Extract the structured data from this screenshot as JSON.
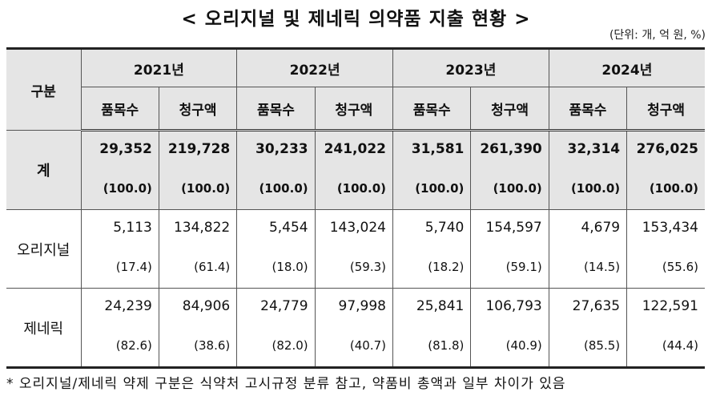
{
  "title": "< 오리지널 및 제네릭 의약품 지출 현황 >",
  "unit": "(단위: 개, 억 원, %)",
  "table": {
    "corner": "구분",
    "years": [
      "2021년",
      "2022년",
      "2023년",
      "2024년"
    ],
    "subheaders": [
      "품목수",
      "청구액"
    ],
    "rows": [
      {
        "label": "계",
        "values": [
          "29,352",
          "219,728",
          "30,233",
          "241,022",
          "31,581",
          "261,390",
          "32,314",
          "276,025"
        ],
        "shares": [
          "(100.0)",
          "(100.0)",
          "(100.0)",
          "(100.0)",
          "(100.0)",
          "(100.0)",
          "(100.0)",
          "(100.0)"
        ]
      },
      {
        "label": "오리지널",
        "values": [
          "5,113",
          "134,822",
          "5,454",
          "143,024",
          "5,740",
          "154,597",
          "4,679",
          "153,434"
        ],
        "shares": [
          "(17.4)",
          "(61.4)",
          "(18.0)",
          "(59.3)",
          "(18.2)",
          "(59.1)",
          "(14.5)",
          "(55.6)"
        ]
      },
      {
        "label": "제네릭",
        "values": [
          "24,239",
          "84,906",
          "24,779",
          "97,998",
          "25,841",
          "106,793",
          "27,635",
          "122,591"
        ],
        "shares": [
          "(82.6)",
          "(38.6)",
          "(82.0)",
          "(40.7)",
          "(81.8)",
          "(40.9)",
          "(85.5)",
          "(44.4)"
        ]
      }
    ]
  },
  "footnote": "* 오리지널/제네릭 약제 구분은 식약처 고시규정 분류 참고, 약품비 총액과 일부 차이가 있음"
}
